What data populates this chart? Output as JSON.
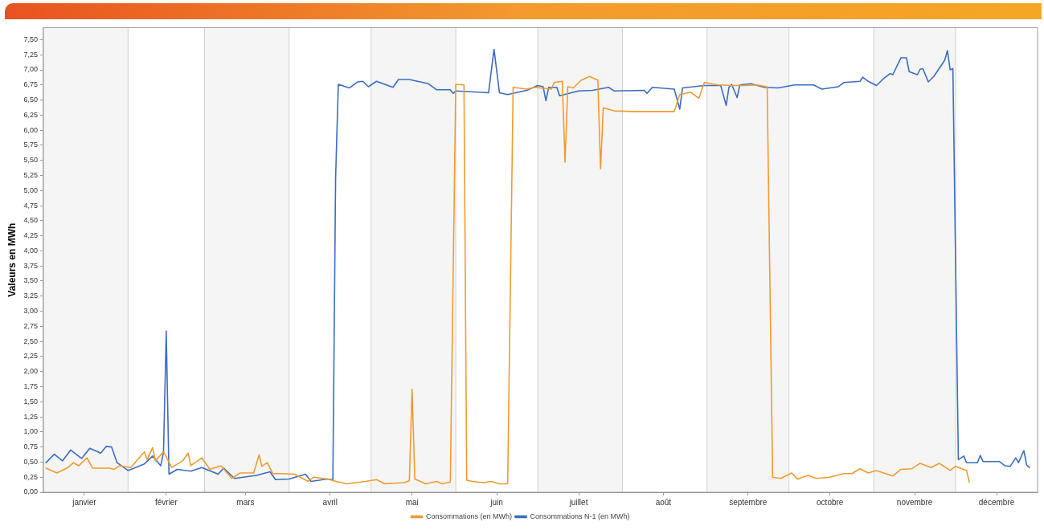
{
  "chart_data": {
    "type": "line",
    "ylabel": "Valeurs en MWh",
    "xlim": [
      "--01-01",
      "--12-31"
    ],
    "ylim": [
      0,
      7.7
    ],
    "xticks": [
      {
        "value": "--01-16",
        "label": "janvier"
      },
      {
        "value": "--02-15",
        "label": "février"
      },
      {
        "value": "--03-16",
        "label": "mars"
      },
      {
        "value": "--04-16",
        "label": "avril"
      },
      {
        "value": "--05-16",
        "label": "mai"
      },
      {
        "value": "--06-16",
        "label": "juin"
      },
      {
        "value": "--07-16",
        "label": "juillet"
      },
      {
        "value": "--08-16",
        "label": "août"
      },
      {
        "value": "--09-16",
        "label": "septembre"
      },
      {
        "value": "--10-16",
        "label": "octobre"
      },
      {
        "value": "--11-16",
        "label": "novembre"
      },
      {
        "value": "--12-16",
        "label": "décembre"
      }
    ],
    "yticks": [
      {
        "value": 0,
        "label": "0,00"
      },
      {
        "value": 0.25,
        "label": "0,25"
      },
      {
        "value": 0.5,
        "label": "0,50"
      },
      {
        "value": 0.75,
        "label": "0,75"
      },
      {
        "value": 1,
        "label": "1,00"
      },
      {
        "value": 1.25,
        "label": "1,25"
      },
      {
        "value": 1.5,
        "label": "1,50"
      },
      {
        "value": 1.75,
        "label": "1,75"
      },
      {
        "value": 2,
        "label": "2,00"
      },
      {
        "value": 2.25,
        "label": "2,25"
      },
      {
        "value": 2.5,
        "label": "2,50"
      },
      {
        "value": 2.75,
        "label": "2,75"
      },
      {
        "value": 3,
        "label": "3,00"
      },
      {
        "value": 3.25,
        "label": "3,25"
      },
      {
        "value": 3.5,
        "label": "3,50"
      },
      {
        "value": 3.75,
        "label": "3,75"
      },
      {
        "value": 4,
        "label": "4,00"
      },
      {
        "value": 4.25,
        "label": "4,25"
      },
      {
        "value": 4.5,
        "label": "4,50"
      },
      {
        "value": 4.75,
        "label": "4,75"
      },
      {
        "value": 5,
        "label": "5,00"
      },
      {
        "value": 5.25,
        "label": "5,25"
      },
      {
        "value": 5.5,
        "label": "5,50"
      },
      {
        "value": 5.75,
        "label": "5,75"
      },
      {
        "value": 6,
        "label": "6,00"
      },
      {
        "value": 6.25,
        "label": "6,25"
      },
      {
        "value": 6.5,
        "label": "6,50"
      },
      {
        "value": 6.75,
        "label": "6,75"
      },
      {
        "value": 7,
        "label": "7,00"
      },
      {
        "value": 7.25,
        "label": "7,25"
      },
      {
        "value": 7.5,
        "label": "7,50"
      }
    ],
    "grid": false,
    "legend": "bottom",
    "marker": "none",
    "line_style": "solid",
    "bands": [
      {
        "axis": "x",
        "from": "--01-01",
        "to": "--02-01",
        "color": "#f5f5f5"
      },
      {
        "axis": "x",
        "from": "--03-01",
        "to": "--04-01",
        "color": "#f5f5f5"
      },
      {
        "axis": "x",
        "from": "--05-01",
        "to": "--06-01",
        "color": "#f5f5f5"
      },
      {
        "axis": "x",
        "from": "--07-01",
        "to": "--08-01",
        "color": "#f5f5f5"
      },
      {
        "axis": "x",
        "from": "--09-01",
        "to": "--10-01",
        "color": "#f5f5f5"
      },
      {
        "axis": "x",
        "from": "--11-01",
        "to": "--12-01",
        "color": "#f5f5f5"
      }
    ],
    "series": [
      {
        "name": "Consommations (en MWh)",
        "color": "#f39a2e",
        "x": [
          "--01-02",
          "--01-06",
          "--01-10",
          "--01-12",
          "--01-14",
          "--01-17",
          "--01-19",
          "--01-25",
          "--01-27",
          "--01-29",
          "--02-02",
          "--02-07",
          "--02-08",
          "--02-10",
          "--02-11",
          "--02-14",
          "--02-17",
          "--02-21",
          "--02-23",
          "--02-24",
          "--02-28",
          "--03-03",
          "--03-07",
          "--03-11",
          "--03-14",
          "--03-19",
          "--03-21",
          "--03-22",
          "--03-24",
          "--03-26",
          "--03-29",
          "--04-03",
          "--04-08",
          "--04-10",
          "--04-15",
          "--04-19",
          "--04-22",
          "--04-29",
          "--05-03",
          "--05-06",
          "--05-13",
          "--05-15",
          "--05-16",
          "--05-17",
          "--05-21",
          "--05-25",
          "--05-27",
          "--05-30",
          "--06-01",
          "--06-04",
          "--06-05",
          "--06-07",
          "--06-11",
          "--06-14",
          "--06-17",
          "--06-20",
          "--06-22",
          "--06-27",
          "--06-30",
          "--07-06",
          "--07-07",
          "--07-10",
          "--07-11",
          "--07-12",
          "--07-14",
          "--07-17",
          "--07-20",
          "--07-23",
          "--07-24",
          "--07-25",
          "--07-29",
          "--08-05",
          "--08-10",
          "--08-20",
          "--08-22",
          "--08-26",
          "--08-29",
          "--08-31",
          "--09-05",
          "--09-10",
          "--09-15",
          "--09-19",
          "--09-23",
          "--09-25",
          "--09-28",
          "--10-02",
          "--10-04",
          "--10-08",
          "--10-11",
          "--10-16",
          "--10-21",
          "--10-24",
          "--10-27",
          "--10-30",
          "--11-02",
          "--11-08",
          "--11-11",
          "--11-15",
          "--11-18",
          "--11-22",
          "--11-25",
          "--11-29",
          "--12-01",
          "--12-05",
          "--12-06"
        ],
        "values": [
          0.4,
          0.32,
          0.41,
          0.49,
          0.44,
          0.57,
          0.4,
          0.4,
          0.38,
          0.44,
          0.41,
          0.67,
          0.54,
          0.74,
          0.52,
          0.67,
          0.41,
          0.52,
          0.65,
          0.44,
          0.57,
          0.38,
          0.44,
          0.23,
          0.32,
          0.32,
          0.62,
          0.43,
          0.49,
          0.31,
          0.31,
          0.3,
          0.18,
          0.25,
          0.22,
          0.17,
          0.14,
          0.18,
          0.21,
          0.14,
          0.16,
          0.19,
          1.71,
          0.22,
          0.14,
          0.18,
          0.14,
          0.17,
          6.76,
          6.75,
          0.2,
          0.18,
          0.16,
          0.18,
          0.14,
          0.14,
          6.71,
          6.68,
          6.71,
          6.68,
          6.79,
          6.81,
          5.47,
          6.72,
          6.7,
          6.83,
          6.89,
          6.83,
          5.36,
          6.37,
          6.32,
          6.31,
          6.31,
          6.31,
          6.59,
          6.63,
          6.53,
          6.79,
          6.75,
          6.74,
          6.74,
          6.75,
          6.72,
          0.25,
          0.23,
          0.32,
          0.22,
          0.28,
          0.23,
          0.25,
          0.31,
          0.31,
          0.39,
          0.32,
          0.36,
          0.27,
          0.38,
          0.39,
          0.48,
          0.41,
          0.48,
          0.36,
          0.43,
          0.36,
          0.17
        ]
      },
      {
        "name": "Consommations N-1 (en MWh)",
        "color": "#3a6cc4",
        "x": [
          "--01-02",
          "--01-05",
          "--01-08",
          "--01-11",
          "--01-15",
          "--01-18",
          "--01-22",
          "--01-24",
          "--01-26",
          "--01-28",
          "--02-01",
          "--02-07",
          "--02-10",
          "--02-13",
          "--02-14",
          "--02-15",
          "--02-16",
          "--02-19",
          "--02-24",
          "--02-28",
          "--03-06",
          "--03-08",
          "--03-12",
          "--03-20",
          "--03-25",
          "--03-27",
          "--04-01",
          "--04-07",
          "--04-09",
          "--04-15",
          "--04-17",
          "--04-18",
          "--04-19",
          "--04-23",
          "--04-26",
          "--04-28",
          "--04-30",
          "--05-03",
          "--05-09",
          "--05-11",
          "--05-15",
          "--05-22",
          "--05-25",
          "--05-30",
          "--05-31",
          "--06-01",
          "--06-13",
          "--06-15",
          "--06-17",
          "--06-20",
          "--06-27",
          "--07-01",
          "--07-03",
          "--07-04",
          "--07-05",
          "--07-08",
          "--07-09",
          "--07-16",
          "--07-21",
          "--07-27",
          "--07-29",
          "--08-09",
          "--08-10",
          "--08-12",
          "--08-20",
          "--08-22",
          "--08-23",
          "--08-31",
          "--09-06",
          "--09-08",
          "--09-09",
          "--09-10",
          "--09-12",
          "--09-13",
          "--09-17",
          "--09-22",
          "--09-27",
          "--10-03",
          "--10-10",
          "--10-13",
          "--10-19",
          "--10-21",
          "--10-27",
          "--10-28",
          "--10-30",
          "--11-02",
          "--11-05",
          "--11-07",
          "--11-08",
          "--11-11",
          "--11-13",
          "--11-14",
          "--11-17",
          "--11-18",
          "--11-19",
          "--11-21",
          "--11-23",
          "--11-27",
          "--11-28",
          "--11-29",
          "--11-30",
          "--12-02",
          "--12-04",
          "--12-05",
          "--12-09",
          "--12-10",
          "--12-11",
          "--12-17",
          "--12-19",
          "--12-21",
          "--12-23",
          "--12-24",
          "--12-26",
          "--12-27",
          "--12-28"
        ],
        "values": [
          0.49,
          0.63,
          0.52,
          0.7,
          0.56,
          0.73,
          0.65,
          0.76,
          0.75,
          0.49,
          0.36,
          0.47,
          0.6,
          0.44,
          0.67,
          2.67,
          0.3,
          0.38,
          0.35,
          0.41,
          0.3,
          0.4,
          0.23,
          0.28,
          0.34,
          0.21,
          0.22,
          0.3,
          0.18,
          0.22,
          0.21,
          5.2,
          6.76,
          6.7,
          6.8,
          6.81,
          6.72,
          6.81,
          6.71,
          6.84,
          6.84,
          6.77,
          6.67,
          6.67,
          6.61,
          6.65,
          6.62,
          7.34,
          6.62,
          6.59,
          6.66,
          6.74,
          6.72,
          6.49,
          6.71,
          6.71,
          6.57,
          6.65,
          6.66,
          6.71,
          6.65,
          6.66,
          6.61,
          6.71,
          6.68,
          6.35,
          6.7,
          6.74,
          6.74,
          6.41,
          6.71,
          6.76,
          6.54,
          6.75,
          6.77,
          6.71,
          6.7,
          6.75,
          6.75,
          6.68,
          6.72,
          6.79,
          6.81,
          6.88,
          6.81,
          6.74,
          6.87,
          6.94,
          6.92,
          7.2,
          7.2,
          6.97,
          6.92,
          7.01,
          7.02,
          6.8,
          6.89,
          7.16,
          7.32,
          7.0,
          7.02,
          0.54,
          0.6,
          0.49,
          0.49,
          0.61,
          0.51,
          0.51,
          0.44,
          0.43,
          0.57,
          0.49,
          0.69,
          0.45,
          0.41
        ]
      }
    ]
  }
}
